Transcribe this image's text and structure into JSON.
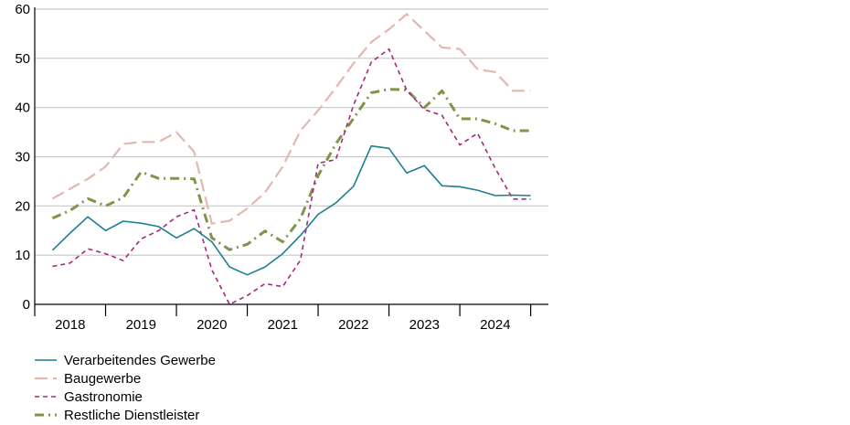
{
  "chart_data": {
    "type": "line",
    "title": "",
    "xlabel": "",
    "ylabel": "",
    "ylim": [
      0,
      60
    ],
    "yticks": [
      0,
      10,
      20,
      30,
      40,
      50,
      60
    ],
    "grid": "horizontal",
    "legend_position": "bottom-left",
    "years": [
      "2018",
      "2019",
      "2020",
      "2021",
      "2022",
      "2023",
      "2024"
    ],
    "x": [
      2017.875,
      2018.125,
      2018.375,
      2018.625,
      2018.875,
      2019.125,
      2019.375,
      2019.625,
      2019.875,
      2020.125,
      2020.375,
      2020.625,
      2020.875,
      2021.125,
      2021.375,
      2021.625,
      2021.875,
      2022.125,
      2022.375,
      2022.625,
      2022.875,
      2023.125,
      2023.375,
      2023.625,
      2023.875,
      2024.125,
      2024.375,
      2024.625
    ],
    "series": [
      {
        "name": "Verarbeitendes Gewerbe",
        "color": "#1b7f91",
        "style": "solid",
        "values": [
          11,
          14.5,
          17.8,
          15,
          16.9,
          16.5,
          15.8,
          13.5,
          15.4,
          12.7,
          7.6,
          6,
          7.6,
          10.3,
          14,
          18.3,
          20.6,
          24,
          32.2,
          31.7,
          26.7,
          28.2,
          24.1,
          23.9,
          23.2,
          22.1,
          22.2,
          22.1
        ]
      },
      {
        "name": "Baugewerbe",
        "color": "#e3b8b0",
        "style": "longdash",
        "values": [
          21.5,
          23.5,
          25.5,
          28,
          32.6,
          33,
          33,
          35,
          31,
          16.4,
          17,
          19.5,
          22.7,
          28,
          35.3,
          39.4,
          44,
          49,
          53.3,
          55.9,
          59,
          55.6,
          52.2,
          51.9,
          47.8,
          47.2,
          43.4,
          43.4
        ]
      },
      {
        "name": "Gastronomie",
        "color": "#a8287d",
        "style": "shortdash",
        "values": [
          7.7,
          8.4,
          11.3,
          10.3,
          8.9,
          13.3,
          15,
          17.8,
          19.2,
          7,
          0,
          1.8,
          4.2,
          3.6,
          9,
          28.7,
          29.4,
          40.5,
          49.2,
          51.9,
          43.5,
          39.6,
          38.4,
          32.4,
          34.8,
          27.6,
          21.4,
          21.4
        ]
      },
      {
        "name": "Restliche Dienstleister",
        "color": "#84924a",
        "style": "dashdot",
        "values": [
          17.5,
          19.1,
          21.5,
          20,
          21.7,
          26.9,
          25.6,
          25.6,
          25.5,
          13.5,
          11.1,
          12.2,
          14.9,
          12.7,
          17.4,
          26.2,
          32.6,
          37.8,
          43,
          43.7,
          43.6,
          40,
          43.4,
          37.7,
          37.7,
          36.7,
          35.3,
          35.3
        ]
      }
    ]
  }
}
